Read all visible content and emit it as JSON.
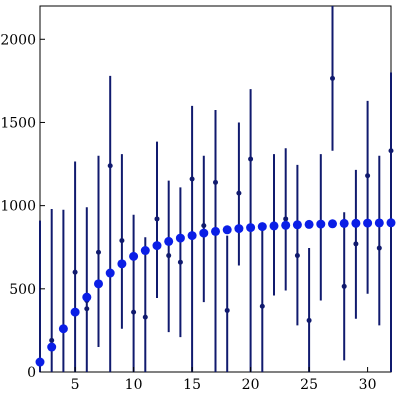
{
  "chart_data": {
    "type": "scatter",
    "title": "",
    "xlabel": "",
    "ylabel": "",
    "xlim": [
      2,
      32
    ],
    "ylim": [
      0,
      2200
    ],
    "grid": false,
    "legend": "none",
    "x_ticks": [
      {
        "value": 5,
        "label": "5"
      },
      {
        "value": 10,
        "label": "10"
      },
      {
        "value": 15,
        "label": "15"
      },
      {
        "value": 20,
        "label": "20"
      },
      {
        "value": 25,
        "label": "25"
      },
      {
        "value": 30,
        "label": "30"
      }
    ],
    "y_ticks": [
      {
        "value": 0,
        "label": "0"
      },
      {
        "value": 500,
        "label": "500"
      },
      {
        "value": 1000,
        "label": "1000"
      },
      {
        "value": 1500,
        "label": "1500"
      },
      {
        "value": 2000,
        "label": "2000"
      }
    ],
    "colors": {
      "mean_marker": "#0a1ee6",
      "error_bar": "#101a6e",
      "sample_point": "#101a6e"
    },
    "series": [
      {
        "kind": "mean",
        "x": [
          2,
          3,
          4,
          5,
          6,
          7,
          8,
          9,
          10,
          11,
          12,
          13,
          14,
          15,
          16,
          17,
          18,
          19,
          20,
          21,
          22,
          23,
          24,
          25,
          26,
          27,
          28,
          29,
          30,
          31,
          32
        ],
        "values": [
          60,
          150,
          260,
          360,
          450,
          530,
          595,
          650,
          695,
          730,
          760,
          785,
          805,
          820,
          835,
          845,
          855,
          862,
          868,
          874,
          878,
          882,
          885,
          887,
          889,
          891,
          893,
          894,
          895,
          896,
          897
        ]
      },
      {
        "kind": "error_bar",
        "x": [
          2,
          3,
          4,
          5,
          6,
          7,
          8,
          9,
          10,
          11,
          12,
          13,
          14,
          15,
          16,
          17,
          18,
          19,
          20,
          21,
          22,
          23,
          24,
          25,
          26,
          27,
          28,
          29,
          30,
          31,
          32
        ],
        "low": [
          0,
          0,
          0,
          0,
          0,
          150,
          0,
          260,
          0,
          0,
          445,
          240,
          210,
          0,
          420,
          0,
          0,
          640,
          0,
          0,
          460,
          490,
          280,
          0,
          430,
          1330,
          70,
          320,
          470,
          280,
          0
        ],
        "high": [
          910,
          980,
          975,
          1265,
          990,
          1300,
          1780,
          1310,
          945,
          810,
          1385,
          1150,
          1110,
          1600,
          1300,
          1575,
          820,
          1500,
          1700,
          850,
          1310,
          1345,
          1245,
          745,
          1310,
          2200,
          960,
          1215,
          1630,
          1300,
          1800
        ]
      },
      {
        "kind": "sample",
        "x": [
          3,
          4,
          5,
          6,
          6,
          7,
          8,
          9,
          10,
          11,
          12,
          13,
          14,
          15,
          16,
          17,
          18,
          19,
          20,
          21,
          23,
          24,
          25,
          27,
          28,
          29,
          30,
          31,
          32
        ],
        "values": [
          190,
          260,
          600,
          380,
          430,
          720,
          1240,
          790,
          360,
          330,
          920,
          700,
          660,
          1160,
          880,
          1140,
          370,
          1075,
          1280,
          395,
          920,
          700,
          310,
          1765,
          515,
          770,
          1180,
          745,
          1330
        ]
      }
    ]
  }
}
